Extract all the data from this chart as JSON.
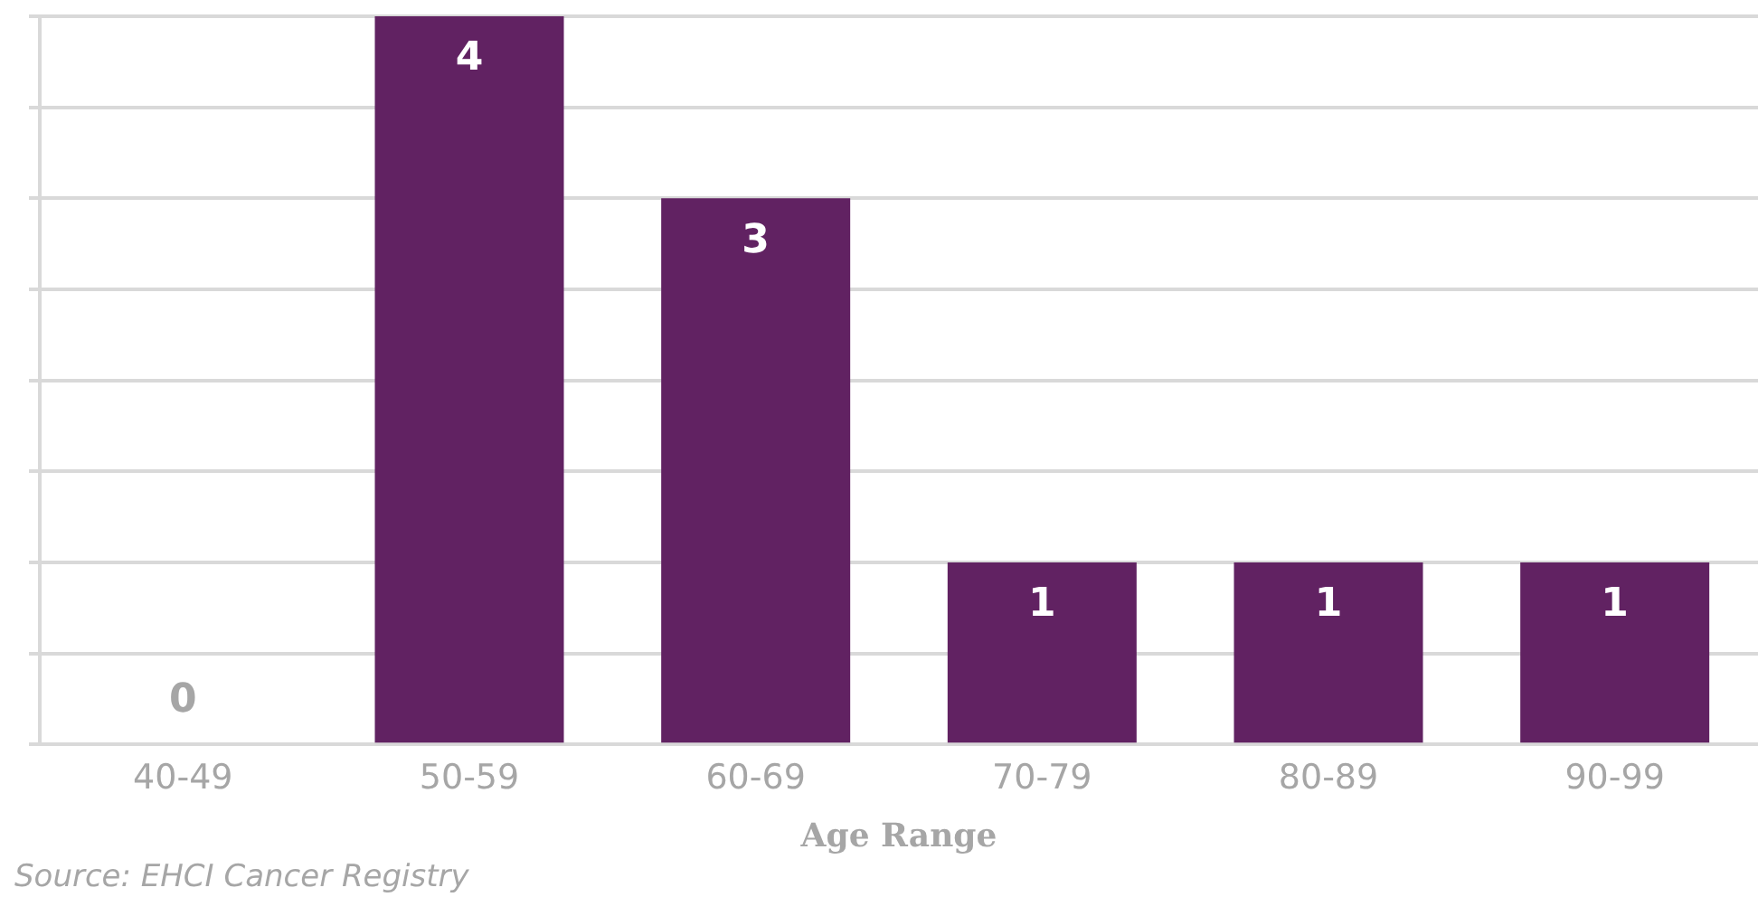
{
  "chart_data": {
    "type": "bar",
    "xlabel": "Age Range",
    "categories": [
      "40-49",
      "50-59",
      "60-69",
      "70-79",
      "80-89",
      "90-99"
    ],
    "values": [
      0,
      4,
      3,
      1,
      1,
      1
    ],
    "color": "#612262",
    "ylim": [
      0,
      4
    ],
    "yticks": [
      {
        "value": 0,
        "label": null
      },
      {
        "value": 0.5,
        "label": null
      },
      {
        "value": 1,
        "label": null
      },
      {
        "value": 1.5,
        "label": null
      },
      {
        "value": 2,
        "label": null
      },
      {
        "value": 2.5,
        "label": null
      },
      {
        "value": 3,
        "label": null
      },
      {
        "value": 3.5,
        "label": null
      },
      {
        "value": 4,
        "label": null
      }
    ],
    "tick_labels": "x",
    "grid": "y",
    "legend": false,
    "data_labels": true,
    "annotations": [
      "Source: EHCI Cancer Registry"
    ]
  }
}
